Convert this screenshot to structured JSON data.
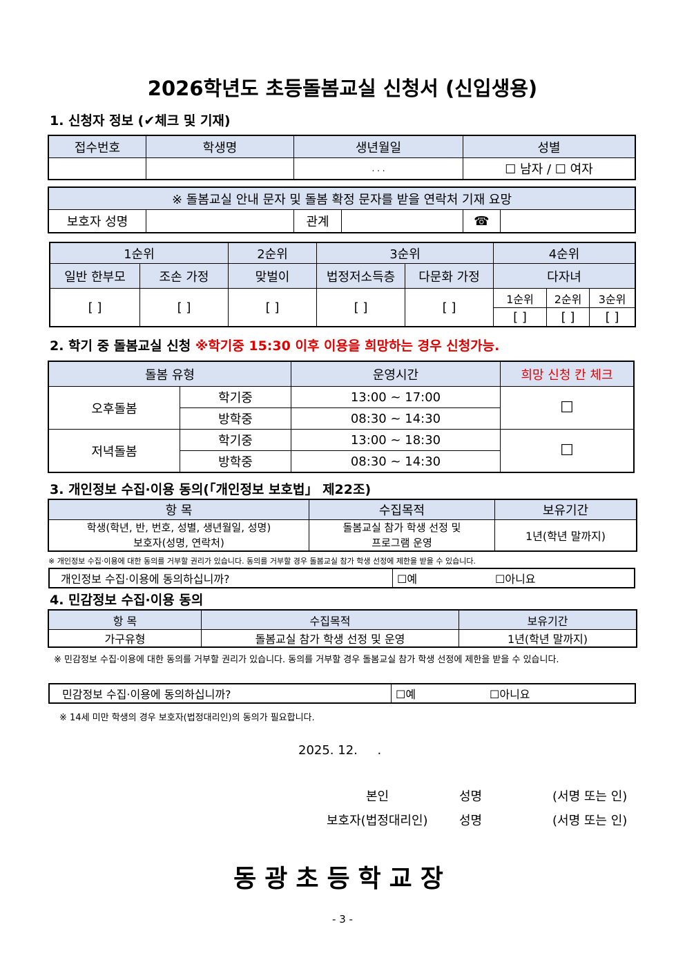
{
  "title": "2026학년도 초등돌봄교실 신청서 (신입생용)",
  "s1": {
    "heading": "1. 신청자 정보 (✔체크 및 기재)",
    "cols": [
      "접수번호",
      "학생명",
      "생년월일",
      "성별"
    ],
    "birth_placeholder": ".    .    .",
    "gender": "☐ 남자 / ☐ 여자",
    "contact_note": "※ 돌봄교실 안내 문자 및 돌봄 확정 문자를 받을 연락처 기재 요망",
    "guardian_label": "보호자 성명",
    "relation_label": "관계",
    "phone_icon": "☎",
    "priority": [
      "1순위",
      "2순위",
      "3순위",
      "4순위"
    ],
    "categories": [
      "일반 한부모",
      "조손 가정",
      "맞벌이",
      "법정저소득층",
      "다문화 가정",
      "다자녀"
    ],
    "sub_priority": [
      "1순위",
      "2순위",
      "3순위"
    ],
    "bracket": "[      ]",
    "bracket_small": "[     ]"
  },
  "s2": {
    "heading": "2. 학기 중 돌봄교실 신청 ",
    "heading_red": "※학기중 15:30 이후 이용을 희망하는 경우 신청가능.",
    "cols": [
      "돌봄 유형",
      "운영시간",
      "희망 신청 칸 체크"
    ],
    "rows": [
      {
        "type": "오후돌봄",
        "terms": [
          {
            "term": "학기중",
            "time": "13:00 ~ 17:00"
          },
          {
            "term": "방학중",
            "time": "08:30 ~ 14:30"
          }
        ]
      },
      {
        "type": "저녁돌봄",
        "terms": [
          {
            "term": "학기중",
            "time": "13:00 ~ 18:30"
          },
          {
            "term": "방학중",
            "time": "08:30 ~ 14:30"
          }
        ]
      }
    ],
    "checkbox": "☐"
  },
  "s3": {
    "heading": "3. 개인정보 수집·이용 동의(「개인정보 보호법」 제22조)",
    "cols": [
      "항 목",
      "수집목적",
      "보유기간"
    ],
    "item1": "학생(학년, 반, 번호, 성별, 생년월일, 성명)",
    "item2": "보호자(성명, 연락처)",
    "purpose1": "돌봄교실 참가 학생 선정 및",
    "purpose2": "프로그램 운영",
    "period": "1년(학년 말까지)",
    "note": "※ 개인정보 수집·이용에 대한 동의를 거부할 권리가 있습니다. 동의를 거부할 경우 돌봄교실 참가 학생 선정에 제한을 받을 수 있습니다.",
    "question": "개인정보 수집·이용에 동의하십니까?",
    "yes": "☐예",
    "no": "☐아니요"
  },
  "s4": {
    "heading": "4. 민감정보 수집·이용 동의",
    "cols": [
      "항 목",
      "수집목적",
      "보유기간"
    ],
    "row": [
      "가구유형",
      "돌봄교실 참가 학생 선정 및 운영",
      "1년(학년 말까지)"
    ],
    "note": "※ 민감정보 수집·이용에 대한 동의를 거부할 권리가 있습니다. 동의를 거부할 경우 돌봄교실 참가 학생 선정에 제한을 받을 수 있습니다.",
    "question": "민감정보 수집·이용에 동의하십니까?",
    "yes": "☐예",
    "no": "☐아니요",
    "note2": "※ 14세 미만 학생의 경우 보호자(법정대리인)의 동의가 필요합니다."
  },
  "date": "2025. 12.     .",
  "sign": [
    {
      "role": "본인",
      "name": "성명",
      "mark": "(서명 또는 인)"
    },
    {
      "role": "보호자(법정대리인)",
      "name": "성명",
      "mark": "(서명 또는 인)"
    }
  ],
  "school": "동광초등학교장",
  "page": "- 3 -"
}
